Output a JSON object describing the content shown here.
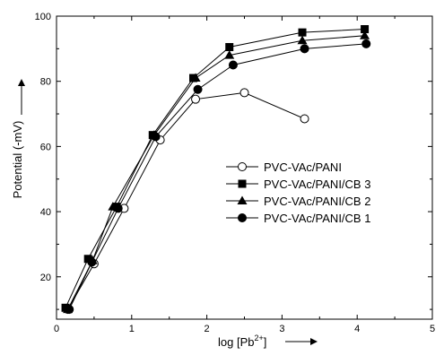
{
  "chart_data": {
    "type": "line",
    "title": "",
    "xlabel": "log [Pb",
    "xlabel_sup": "2+",
    "xlabel_close": "]",
    "ylabel": "Potential (-mV)",
    "xlim": [
      0,
      5
    ],
    "ylim": [
      7,
      100
    ],
    "xticks": [
      0,
      1,
      2,
      3,
      4,
      5
    ],
    "yticks": [
      20,
      40,
      60,
      80,
      100
    ],
    "grid": false,
    "legend_position": "right-center",
    "series": [
      {
        "name": "PVC-VAc/PANI",
        "marker": "circle-open",
        "x": [
          0.15,
          0.5,
          0.9,
          1.38,
          1.85,
          2.5,
          3.3
        ],
        "y": [
          10,
          24,
          41,
          62,
          74.5,
          76.5,
          68.5
        ]
      },
      {
        "name": "PVC-VAc/PANI/CB 3",
        "marker": "square",
        "x": [
          0.12,
          0.42,
          0.8,
          1.28,
          1.82,
          2.3,
          3.27,
          4.1
        ],
        "y": [
          10.5,
          25.5,
          41.5,
          63.5,
          81,
          90.5,
          95,
          96
        ]
      },
      {
        "name": "PVC-VAc/PANI/CB 2",
        "marker": "triangle",
        "x": [
          0.15,
          0.48,
          0.75,
          1.3,
          1.85,
          2.3,
          3.27,
          4.1
        ],
        "y": [
          10,
          25,
          41.5,
          63.5,
          81,
          88,
          92.5,
          94
        ]
      },
      {
        "name": "PVC-VAc/PANI/CB 1",
        "marker": "circle",
        "x": [
          0.17,
          0.47,
          0.82,
          1.32,
          1.88,
          2.35,
          3.3,
          4.12
        ],
        "y": [
          10,
          24.5,
          41,
          63,
          77.5,
          85,
          90,
          91.5
        ]
      }
    ]
  }
}
